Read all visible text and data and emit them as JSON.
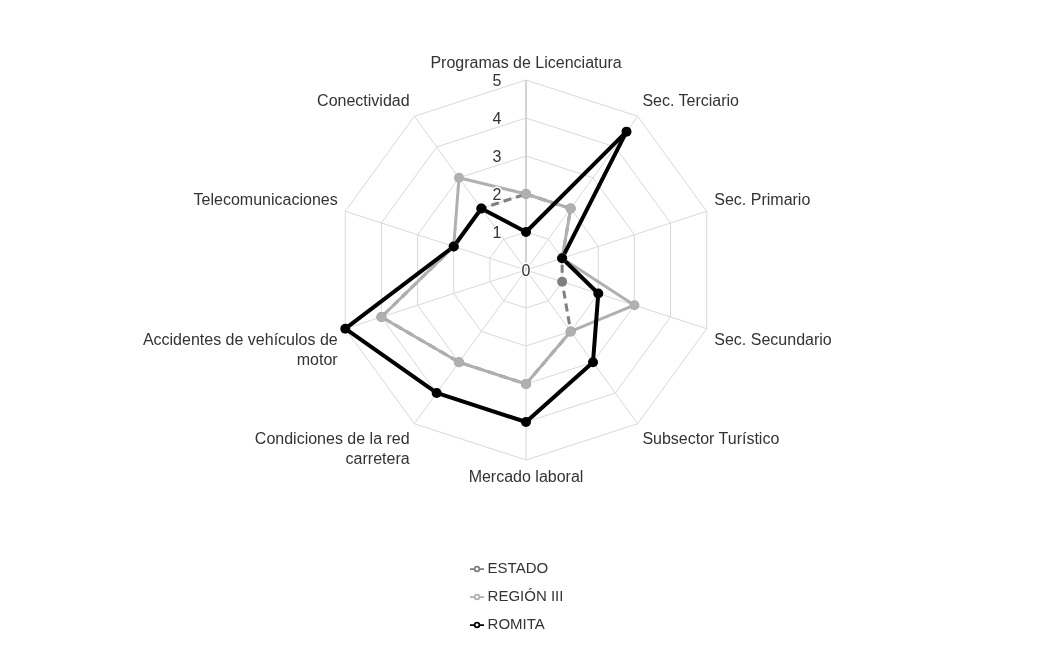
{
  "chart_data": {
    "type": "radar",
    "categories": [
      "Programas de Licenciatura",
      "Sec. Terciario",
      "Sec. Primario",
      "Sec. Secundario",
      "Subsector Turístico",
      "Mercado laboral",
      "Condiciones de la red carretera",
      "Accidentes de vehículos de motor",
      "Telecomunicaciones",
      "Conectividad"
    ],
    "series": [
      {
        "name": "ESTADO",
        "color": "#7f7f7f",
        "line_style": "dashed",
        "values": [
          2,
          2,
          1,
          1,
          2,
          3,
          3,
          4,
          2,
          2
        ]
      },
      {
        "name": "REGIÓN III",
        "color": "#b0b0b0",
        "line_style": "solid",
        "values": [
          2,
          2,
          1,
          3,
          2,
          3,
          3,
          4,
          2,
          3
        ]
      },
      {
        "name": "ROMITA",
        "color": "#000000",
        "line_style": "solid",
        "values": [
          1,
          4.5,
          1,
          2,
          3,
          4,
          4,
          5,
          2,
          2
        ]
      }
    ],
    "ylim": [
      0,
      5
    ],
    "yticks": [
      0,
      1,
      2,
      3,
      4,
      5
    ],
    "grid": true,
    "legend": "bottom",
    "marker": "circle"
  }
}
